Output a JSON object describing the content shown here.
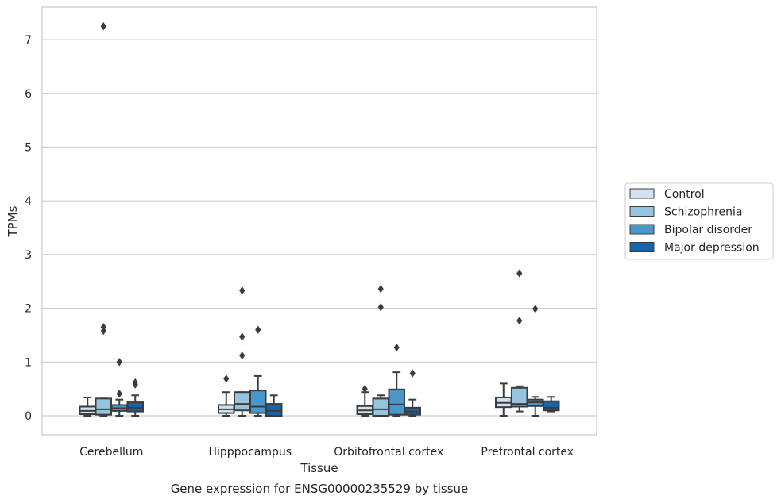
{
  "chart_data": {
    "type": "box",
    "title": "",
    "caption": "Gene expression for ENSG00000235529 by tissue",
    "xlabel": "Tissue",
    "ylabel": "TPMs",
    "ylim": [
      -0.35,
      7.6
    ],
    "yticks": [
      0,
      1,
      2,
      3,
      4,
      5,
      6,
      7
    ],
    "grid": "horizontal",
    "legend_position": "right",
    "categories": [
      "Cerebellum",
      "Hipppocampus",
      "Orbitofrontal cortex",
      "Prefrontal cortex"
    ],
    "series": [
      {
        "name": "Control",
        "color": "#d0e1f1",
        "boxes": [
          {
            "whislo": 0.0,
            "q1": 0.03,
            "med": 0.09,
            "q3": 0.17,
            "whishi": 0.34,
            "fliers": []
          },
          {
            "whislo": 0.0,
            "q1": 0.05,
            "med": 0.12,
            "q3": 0.2,
            "whishi": 0.44,
            "fliers": [
              0.69
            ]
          },
          {
            "whislo": 0.0,
            "q1": 0.03,
            "med": 0.1,
            "q3": 0.18,
            "whishi": 0.44,
            "fliers": [
              0.5
            ]
          },
          {
            "whislo": 0.0,
            "q1": 0.16,
            "med": 0.24,
            "q3": 0.34,
            "whishi": 0.6,
            "fliers": []
          }
        ]
      },
      {
        "name": "Schizophrenia",
        "color": "#94c4df",
        "boxes": [
          {
            "whislo": 0.0,
            "q1": 0.02,
            "med": 0.12,
            "q3": 0.32,
            "whishi": 0.32,
            "fliers": [
              7.25,
              1.65,
              1.58
            ]
          },
          {
            "whislo": 0.0,
            "q1": 0.1,
            "med": 0.22,
            "q3": 0.44,
            "whishi": 0.44,
            "fliers": [
              2.33,
              1.47,
              1.12
            ]
          },
          {
            "whislo": 0.0,
            "q1": 0.0,
            "med": 0.12,
            "q3": 0.32,
            "whishi": 0.38,
            "fliers": [
              2.36,
              2.02
            ]
          },
          {
            "whislo": 0.08,
            "q1": 0.17,
            "med": 0.22,
            "q3": 0.52,
            "whishi": 0.55,
            "fliers": [
              2.65,
              1.77
            ]
          }
        ]
      },
      {
        "name": "Bipolar disorder",
        "color": "#4a98c9",
        "boxes": [
          {
            "whislo": 0.0,
            "q1": 0.09,
            "med": 0.14,
            "q3": 0.2,
            "whishi": 0.3,
            "fliers": [
              1.0,
              0.41
            ]
          },
          {
            "whislo": 0.0,
            "q1": 0.05,
            "med": 0.17,
            "q3": 0.47,
            "whishi": 0.74,
            "fliers": [
              1.6
            ]
          },
          {
            "whislo": 0.0,
            "q1": 0.02,
            "med": 0.21,
            "q3": 0.49,
            "whishi": 0.81,
            "fliers": [
              1.27
            ]
          },
          {
            "whislo": 0.0,
            "q1": 0.18,
            "med": 0.25,
            "q3": 0.3,
            "whishi": 0.35,
            "fliers": [
              1.99
            ]
          }
        ]
      },
      {
        "name": "Major depression",
        "color": "#1764ab",
        "boxes": [
          {
            "whislo": 0.0,
            "q1": 0.08,
            "med": 0.15,
            "q3": 0.25,
            "whishi": 0.38,
            "fliers": [
              0.62,
              0.58
            ]
          },
          {
            "whislo": 0.0,
            "q1": 0.0,
            "med": 0.09,
            "q3": 0.22,
            "whishi": 0.38,
            "fliers": []
          },
          {
            "whislo": 0.0,
            "q1": 0.02,
            "med": 0.08,
            "q3": 0.15,
            "whishi": 0.3,
            "fliers": [
              0.79
            ]
          },
          {
            "whislo": 0.08,
            "q1": 0.1,
            "med": 0.15,
            "q3": 0.27,
            "whishi": 0.35,
            "fliers": []
          }
        ]
      }
    ]
  }
}
